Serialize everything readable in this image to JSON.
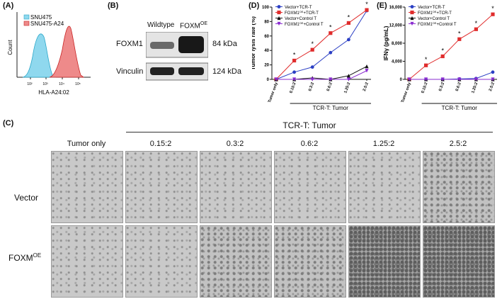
{
  "panels": {
    "A": {
      "label": "(A)",
      "legend": [
        {
          "name": "SNU475",
          "color": "#8fd8ee"
        },
        {
          "name": "SNU475-A24",
          "color": "#ee8a8a"
        }
      ],
      "ylabel": "Count",
      "xlabel": "HLA-A24:02",
      "ticks": [
        "10²",
        "10³",
        "10⁴",
        "10⁵"
      ]
    },
    "B": {
      "label": "(B)",
      "columns": [
        "Wildtype",
        "FOXM",
        "OE"
      ],
      "rows": [
        {
          "name": "FOXM1",
          "size": "84 kDa"
        },
        {
          "name": "Vinculin",
          "size": "124 kDa"
        }
      ]
    },
    "D": {
      "label": "(D)"
    },
    "E": {
      "label": "(E)"
    },
    "C": {
      "label": "(C)",
      "group_title": "TCR-T: Tumor",
      "columns": [
        "Tumor only",
        "0.15:2",
        "0.3:2",
        "0.6:2",
        "1.25:2",
        "2.5:2"
      ],
      "rows": [
        "Vector",
        "FOXM",
        "OE"
      ]
    }
  },
  "chart_data": [
    {
      "type": "line",
      "title": "",
      "ylabel": "Tumor lysis rate (%)",
      "xlabel": "TCR-T: Tumor",
      "x": [
        "Tumor only",
        "0.15:2",
        "0.3:2",
        "0.6:2",
        "1.25:2",
        "2.5:2"
      ],
      "ylim": [
        0,
        100
      ],
      "yticks": [
        0,
        20,
        40,
        60,
        80,
        100
      ],
      "series": [
        {
          "name": "Vector+TCR-T",
          "color": "#2b3fc4",
          "marker": "circle",
          "values": [
            0,
            10,
            17,
            37,
            55,
            95
          ]
        },
        {
          "name": "FOXM1OE+TCR-T",
          "color": "#e02c2c",
          "marker": "square",
          "values": [
            0,
            26,
            41,
            64,
            78,
            96
          ]
        },
        {
          "name": "Vector+Control T",
          "color": "#111111",
          "marker": "triangle",
          "values": [
            0,
            0,
            2,
            0,
            5,
            18
          ]
        },
        {
          "name": "FOXM1OE+Control T",
          "color": "#8a2bd0",
          "marker": "tri-down",
          "values": [
            0,
            0,
            0,
            0,
            0,
            12
          ]
        }
      ],
      "legend_text": {
        "s0": "Vector+TCR-T",
        "s1a": "FOXM1",
        "s1sup": "OE",
        "s1b": "+TCR-T",
        "s2": "Vector+Control T",
        "s3a": "FOXM1",
        "s3sup": "OE",
        "s3b": "+Control T"
      },
      "significance": [
        1,
        2,
        3,
        4,
        5
      ],
      "sig_mark": "*"
    },
    {
      "type": "line",
      "title": "",
      "ylabel": "IFNγ (pg/mL)",
      "xlabel": "TCR-T: Tumor",
      "x": [
        "Tumor only",
        "0.15:2",
        "0.3:2",
        "0.6:2",
        "1.25:2",
        "2.5:2"
      ],
      "ylim": [
        0,
        16000
      ],
      "yticks": [
        "0",
        "4,000",
        "8,000",
        "12,000",
        "16,000"
      ],
      "ytick_values": [
        0,
        4000,
        8000,
        12000,
        16000
      ],
      "series": [
        {
          "name": "Vector+TCR-T",
          "color": "#2b3fc4",
          "marker": "circle",
          "values": [
            0,
            0,
            0,
            100,
            200,
            1600
          ]
        },
        {
          "name": "FOXM1OE+TCR-T",
          "color": "#e02c2c",
          "marker": "square",
          "values": [
            0,
            3100,
            5100,
            8900,
            11100,
            14400
          ]
        },
        {
          "name": "Vector+Control T",
          "color": "#111111",
          "marker": "triangle",
          "values": [
            0,
            0,
            0,
            0,
            0,
            0
          ]
        },
        {
          "name": "FOXM1OE+Control T",
          "color": "#8a2bd0",
          "marker": "tri-down",
          "values": [
            0,
            0,
            0,
            0,
            0,
            0
          ]
        }
      ],
      "legend_text": {
        "s0": "Vector+TCR-T",
        "s1a": "FOXM1",
        "s1sup": "OE",
        "s1b": "+TCR-T",
        "s2": "Vector+Control T",
        "s3a": "FOXM1",
        "s3sup": "OE",
        "s3b": "+Control T"
      },
      "significance": [
        1,
        2,
        3,
        4,
        5
      ],
      "sig_mark": "*"
    }
  ]
}
